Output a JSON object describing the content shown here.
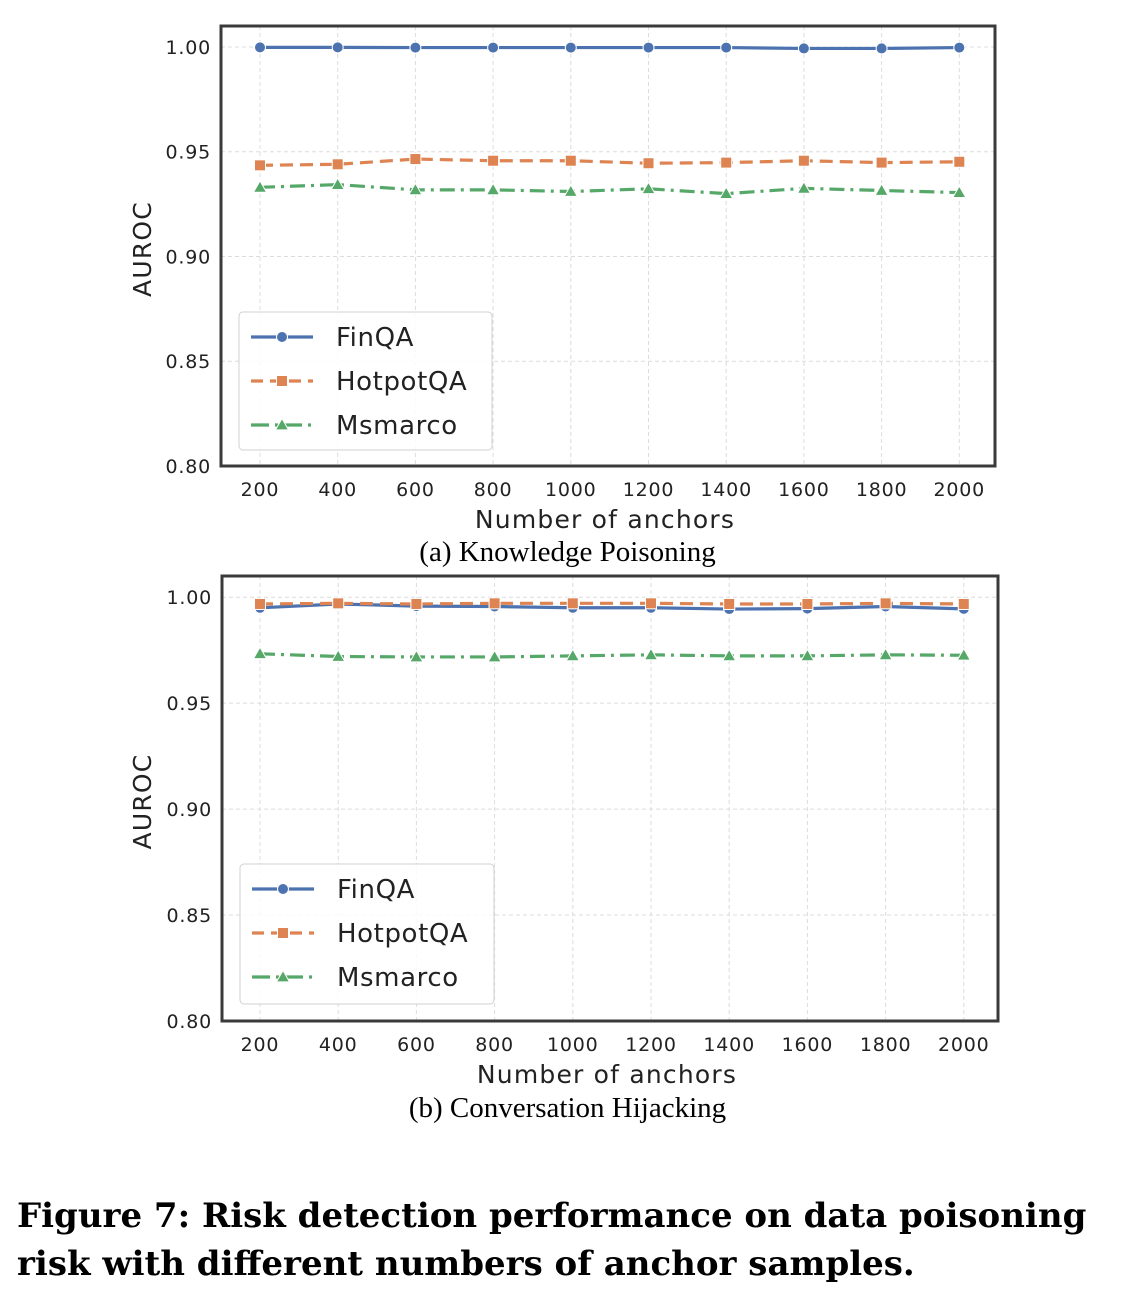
{
  "colors": {
    "FinQA": "#4c72b0",
    "HotpotQA": "#dd8452",
    "Msmarco": "#55a868",
    "frame": "#3a3a3a",
    "grid": "#dcdcdc"
  },
  "chart_data": [
    {
      "type": "line",
      "caption": "(a) Knowledge Poisoning",
      "xlabel": "Number of anchors",
      "ylabel": "AUROC",
      "ylim": [
        0.8,
        1.01
      ],
      "yticks": [
        "0.80",
        "0.85",
        "0.90",
        "0.95",
        "1.00"
      ],
      "legend_position": "lower-left",
      "categories": [
        "200",
        "400",
        "600",
        "800",
        "1000",
        "1200",
        "1400",
        "1600",
        "1800",
        "2000"
      ],
      "series": [
        {
          "name": "FinQA",
          "marker": "circle",
          "dash": "solid",
          "values": [
            0.9998,
            0.9998,
            0.9997,
            0.9997,
            0.9997,
            0.9997,
            0.9997,
            0.9993,
            0.9993,
            0.9997
          ]
        },
        {
          "name": "HotpotQA",
          "marker": "square",
          "dash": "dashed",
          "values": [
            0.9435,
            0.944,
            0.9465,
            0.9457,
            0.9457,
            0.9445,
            0.9448,
            0.9457,
            0.9448,
            0.9452
          ]
        },
        {
          "name": "Msmarco",
          "marker": "triangle",
          "dash": "dashdot",
          "values": [
            0.933,
            0.9343,
            0.9318,
            0.9318,
            0.931,
            0.9323,
            0.93,
            0.9325,
            0.9315,
            0.9305
          ]
        }
      ]
    },
    {
      "type": "line",
      "caption": "(b) Conversation Hijacking",
      "xlabel": "Number of anchors",
      "ylabel": "AUROC",
      "ylim": [
        0.8,
        1.01
      ],
      "yticks": [
        "0.80",
        "0.85",
        "0.90",
        "0.95",
        "1.00"
      ],
      "legend_position": "lower-left",
      "categories": [
        "200",
        "400",
        "600",
        "800",
        "1000",
        "1200",
        "1400",
        "1600",
        "1800",
        "2000"
      ],
      "series": [
        {
          "name": "FinQA",
          "marker": "circle",
          "dash": "solid",
          "values": [
            0.995,
            0.9968,
            0.9958,
            0.9956,
            0.995,
            0.995,
            0.9944,
            0.9946,
            0.9956,
            0.9945
          ]
        },
        {
          "name": "HotpotQA",
          "marker": "square",
          "dash": "dashed",
          "values": [
            0.9968,
            0.9971,
            0.9968,
            0.9971,
            0.9971,
            0.9971,
            0.9968,
            0.9968,
            0.9971,
            0.9968
          ]
        },
        {
          "name": "Msmarco",
          "marker": "triangle",
          "dash": "dashdot",
          "values": [
            0.9733,
            0.972,
            0.9718,
            0.9718,
            0.9723,
            0.9728,
            0.9723,
            0.9723,
            0.9728,
            0.9726
          ]
        }
      ]
    }
  ],
  "figure_caption": "Figure 7: Risk detection performance on data poisoning risk with different numbers of anchor samples."
}
